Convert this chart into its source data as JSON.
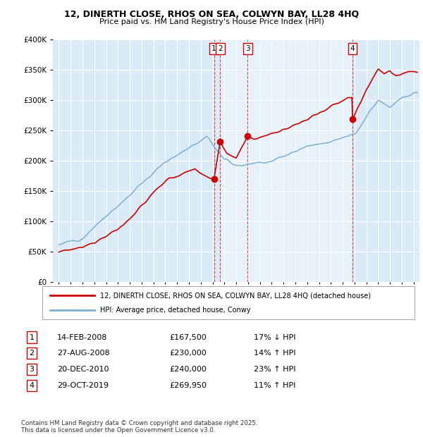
{
  "title_line1": "12, DINERTH CLOSE, RHOS ON SEA, COLWYN BAY, LL28 4HQ",
  "title_line2": "Price paid vs. HM Land Registry's House Price Index (HPI)",
  "legend_line1": "12, DINERTH CLOSE, RHOS ON SEA, COLWYN BAY, LL28 4HQ (detached house)",
  "legend_line2": "HPI: Average price, detached house, Conwy",
  "footer": "Contains HM Land Registry data © Crown copyright and database right 2025.\nThis data is licensed under the Open Government Licence v3.0.",
  "transactions": [
    {
      "num": 1,
      "date": "14-FEB-2008",
      "price": "£167,500",
      "pct": "17% ↓ HPI",
      "label": "1",
      "year": 2008.12
    },
    {
      "num": 2,
      "date": "27-AUG-2008",
      "price": "£230,000",
      "pct": "14% ↑ HPI",
      "label": "2",
      "year": 2008.65
    },
    {
      "num": 3,
      "date": "20-DEC-2010",
      "price": "£240,000",
      "pct": "23% ↑ HPI",
      "label": "3",
      "year": 2010.97
    },
    {
      "num": 4,
      "date": "29-OCT-2019",
      "price": "£269,950",
      "pct": "11% ↑ HPI",
      "label": "4",
      "year": 2019.83
    }
  ],
  "red_color": "#cc0000",
  "blue_color": "#7bafd4",
  "shade_color": "#daeaf7",
  "ylim": [
    0,
    400000
  ],
  "xlim_start": 1994.5,
  "xlim_end": 2025.5
}
